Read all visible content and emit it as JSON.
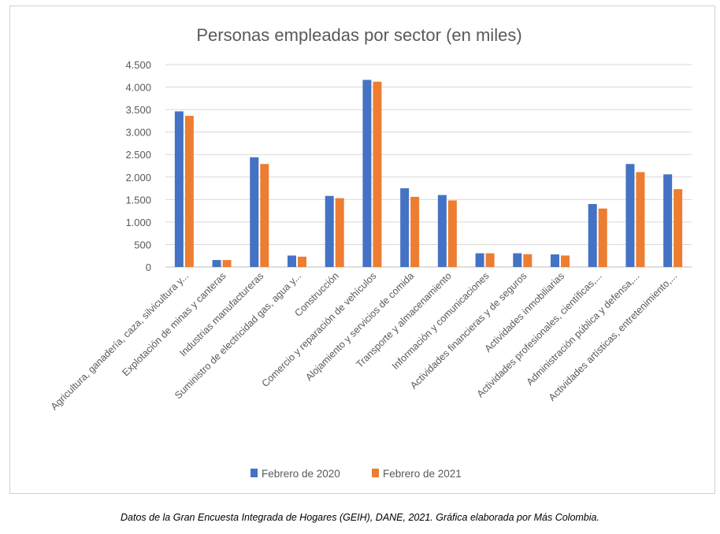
{
  "caption": "Datos de la Gran Encuesta Integrada de Hogares (GEIH), DANE, 2021. Gráfica elaborada por Más Colombia.",
  "chart_data": {
    "type": "bar",
    "title": "Personas empleadas por sector (en miles)",
    "xlabel": "",
    "ylabel": "",
    "ylim": [
      0,
      4500
    ],
    "yticks": [
      0,
      500,
      1000,
      1500,
      2000,
      2500,
      3000,
      3500,
      4000,
      4500
    ],
    "ytick_labels": [
      "0",
      "500",
      "1.000",
      "1.500",
      "2.000",
      "2.500",
      "3.000",
      "3.500",
      "4.000",
      "4.500"
    ],
    "grid": true,
    "legend_position": "bottom",
    "categories": [
      "Agricultura, ganadería, caza, silvicultura y...",
      "Explotación de minas y canteras",
      "Industrias manufactureras",
      "Suministro de electricidad gas, agua y...",
      "Construcción",
      "Comercio y reparación de vehículos",
      "Alojamiento y servicios de comida",
      "Transporte y almacenamiento",
      "Información y comunicaciones",
      "Actividades financieras y de seguros",
      "Actividades inmobiliarias",
      "Actividades profesionales, científicas,...",
      "Administración pública y defensa,...",
      "Actividades artísticas, entretenimiento,..."
    ],
    "series": [
      {
        "name": "Febrero de 2020",
        "color": "#4472C4",
        "values": [
          3460,
          155,
          2440,
          255,
          1580,
          4160,
          1750,
          1600,
          305,
          305,
          280,
          1400,
          2290,
          2060
        ]
      },
      {
        "name": "Febrero de 2021",
        "color": "#ED7D31",
        "values": [
          3360,
          155,
          2290,
          230,
          1530,
          4120,
          1560,
          1480,
          305,
          285,
          255,
          1300,
          2110,
          1730
        ]
      }
    ]
  }
}
